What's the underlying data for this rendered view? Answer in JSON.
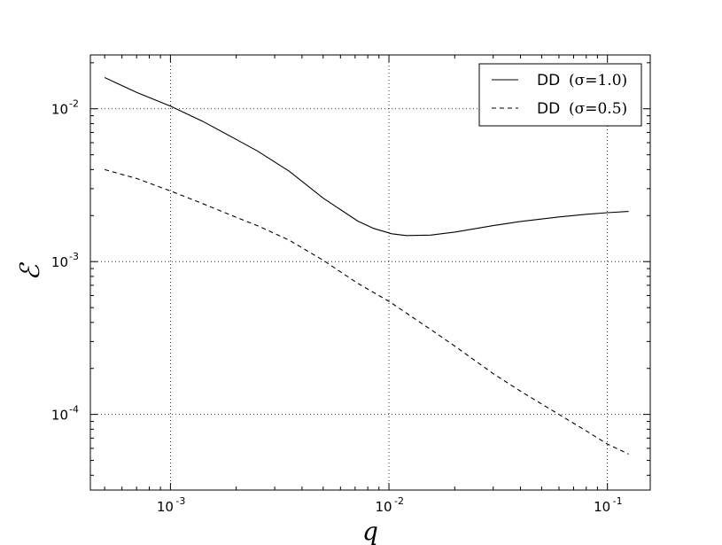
{
  "chart_data": {
    "type": "line",
    "xlabel": "q",
    "ylabel": "ℰ",
    "xscale": "log",
    "yscale": "log",
    "xlim": [
      0.00043,
      0.157
    ],
    "ylim": [
      3.2e-05,
      0.0225
    ],
    "grid": true,
    "grid_style": "dotted",
    "legend_position": "top-right",
    "x_ticks": [
      {
        "base": "10",
        "exp": "-3",
        "value": 0.001
      },
      {
        "base": "10",
        "exp": "-2",
        "value": 0.01
      },
      {
        "base": "10",
        "exp": "-1",
        "value": 0.1
      }
    ],
    "y_ticks": [
      {
        "base": "10",
        "exp": "-4",
        "value": 0.0001
      },
      {
        "base": "10",
        "exp": "-3",
        "value": 0.001
      },
      {
        "base": "10",
        "exp": "-2",
        "value": 0.01
      }
    ],
    "series": [
      {
        "name": "DD (σ = 1.0)",
        "name_prefix": "DD",
        "name_math": "(σ=1.0)",
        "dash": "solid",
        "color": "#000000",
        "x": [
          0.0005,
          0.0007,
          0.001,
          0.0014,
          0.002,
          0.0025,
          0.0035,
          0.005,
          0.0072,
          0.0085,
          0.0103,
          0.012,
          0.0155,
          0.02,
          0.03,
          0.04,
          0.06,
          0.08,
          0.1,
          0.125
        ],
        "y": [
          0.016,
          0.0128,
          0.0104,
          0.0083,
          0.0063,
          0.0053,
          0.0039,
          0.0026,
          0.00184,
          0.00165,
          0.00152,
          0.00148,
          0.00149,
          0.00156,
          0.00172,
          0.00183,
          0.00196,
          0.00204,
          0.00209,
          0.00213
        ]
      },
      {
        "name": "DD (σ = 0.5)",
        "name_prefix": "DD",
        "name_math": "(σ=0.5)",
        "dash": "dashed",
        "color": "#000000",
        "x": [
          0.0005,
          0.0007,
          0.001,
          0.0014,
          0.002,
          0.0025,
          0.0035,
          0.005,
          0.0072,
          0.01,
          0.0155,
          0.02,
          0.03,
          0.04,
          0.06,
          0.08,
          0.1,
          0.125
        ],
        "y": [
          0.004,
          0.0035,
          0.0029,
          0.0024,
          0.00195,
          0.00172,
          0.00138,
          0.00102,
          0.00072,
          0.00055,
          0.00036,
          0.00028,
          0.000185,
          0.000142,
          0.0001,
          7.8e-05,
          6.4e-05,
          5.5e-05
        ]
      }
    ]
  }
}
